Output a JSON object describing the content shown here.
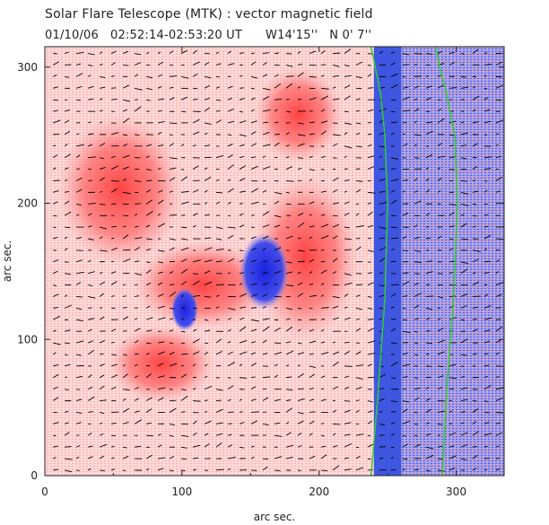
{
  "title_line1": "Solar Flare Telescope (MTK) : vector magnetic field",
  "title_line2": "01/10/06   02:52:14-02:53:20 UT      W14'15''   N 0' 7''",
  "chart_data": {
    "type": "heatmap",
    "title": "Solar Flare Telescope (MTK) : vector magnetic field",
    "subtitle": "01/10/06   02:52:14-02:53:20 UT      W14'15''   N 0' 7''",
    "xlabel": "arc sec.",
    "ylabel": "arc sec.",
    "xlim": [
      0,
      335
    ],
    "ylim": [
      0,
      315
    ],
    "xticks": [
      0,
      100,
      200,
      300
    ],
    "yticks": [
      0,
      100,
      200,
      300
    ],
    "colors": {
      "positive": "#ff6a6a",
      "negative": "#2233ee",
      "arrows": "#000000",
      "limb_contour": "#33cc33",
      "background": "#ffffff"
    },
    "features": [
      {
        "polarity": "positive",
        "cx": 55,
        "cy": 210,
        "rx": 45,
        "ry": 55
      },
      {
        "polarity": "positive",
        "cx": 85,
        "cy": 82,
        "rx": 38,
        "ry": 28
      },
      {
        "polarity": "positive",
        "cx": 115,
        "cy": 140,
        "rx": 50,
        "ry": 32
      },
      {
        "polarity": "positive",
        "cx": 190,
        "cy": 160,
        "rx": 38,
        "ry": 60
      },
      {
        "polarity": "positive",
        "cx": 185,
        "cy": 265,
        "rx": 32,
        "ry": 35
      },
      {
        "polarity": "negative",
        "cx": 102,
        "cy": 122,
        "rx": 10,
        "ry": 16
      },
      {
        "polarity": "negative",
        "cx": 160,
        "cy": 150,
        "rx": 18,
        "ry": 28
      }
    ],
    "limb_band_x": [
      240,
      260
    ],
    "limb_contours": [
      {
        "name": "inner",
        "x": [
          238,
          243,
          248,
          250,
          248,
          245,
          241,
          238
        ],
        "y": [
          0,
          60,
          130,
          200,
          250,
          280,
          300,
          315
        ]
      },
      {
        "name": "outer",
        "x": [
          290,
          293,
          298,
          301,
          299,
          293,
          288,
          285
        ],
        "y": [
          0,
          60,
          130,
          200,
          250,
          280,
          300,
          315
        ]
      }
    ]
  }
}
